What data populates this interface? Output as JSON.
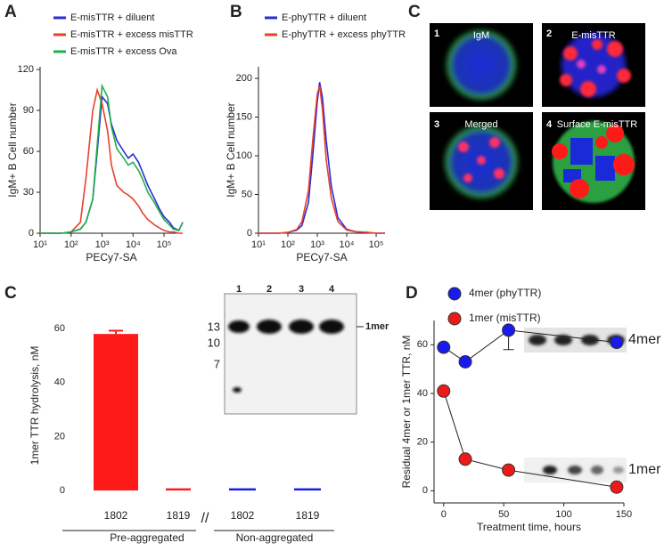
{
  "chart_data": [
    {
      "panel": "A",
      "type": "line",
      "xscale": "log",
      "ylabel": "IgM+ B Cell number",
      "xlabel": "PECy7-SA",
      "legend": "top-left",
      "x": [
        10,
        20,
        50,
        100,
        200,
        300,
        500,
        700,
        1000,
        1500,
        2000,
        3000,
        5000,
        7000,
        10000,
        15000,
        20000,
        30000,
        50000,
        70000,
        100000,
        150000,
        200000,
        300000,
        400000
      ],
      "xlim": [
        10,
        400000
      ],
      "xticks": [
        {
          "value": 10,
          "label": "10¹"
        },
        {
          "value": 100,
          "label": "10²"
        },
        {
          "value": 1000,
          "label": "10³"
        },
        {
          "value": 10000,
          "label": "10⁴"
        },
        {
          "value": 100000,
          "label": "10⁵"
        }
      ],
      "ylim": [
        0,
        122
      ],
      "yticks": [
        0,
        30,
        60,
        90,
        120
      ],
      "series": [
        {
          "name": "E-misTTR + diluent",
          "color": "#2b2bd6",
          "values": [
            0,
            0,
            0,
            1,
            3,
            8,
            25,
            60,
            100,
            95,
            80,
            68,
            60,
            55,
            58,
            52,
            45,
            35,
            25,
            18,
            12,
            8,
            4,
            2,
            8
          ]
        },
        {
          "name": "E-misTTR + excess misTTR",
          "color": "#e8402a",
          "values": [
            0,
            0,
            0,
            1,
            8,
            40,
            90,
            105,
            95,
            75,
            50,
            35,
            30,
            28,
            25,
            20,
            15,
            10,
            6,
            4,
            2,
            1,
            1,
            0,
            0
          ]
        },
        {
          "name": "E-misTTR + excess Ova",
          "color": "#1fb04a",
          "values": [
            0,
            0,
            0,
            1,
            3,
            8,
            25,
            65,
            108,
            100,
            78,
            62,
            55,
            50,
            52,
            46,
            40,
            30,
            22,
            16,
            10,
            6,
            3,
            2,
            8
          ]
        }
      ]
    },
    {
      "panel": "B",
      "type": "line",
      "xscale": "log",
      "ylabel": "IgM+ B Cell number",
      "xlabel": "PECy7-SA",
      "legend": "top-left",
      "x": [
        10,
        20,
        50,
        100,
        200,
        300,
        500,
        700,
        1000,
        1200,
        1500,
        2000,
        3000,
        5000,
        10000,
        20000,
        50000,
        100000,
        200000
      ],
      "xlim": [
        10,
        200000
      ],
      "xticks": [
        {
          "value": 10,
          "label": "10¹"
        },
        {
          "value": 100,
          "label": "10²"
        },
        {
          "value": 1000,
          "label": "10³"
        },
        {
          "value": 10000,
          "label": "10⁴"
        },
        {
          "value": 100000,
          "label": "10⁵"
        }
      ],
      "ylim": [
        0,
        215
      ],
      "yticks": [
        0,
        50,
        100,
        150,
        200
      ],
      "series": [
        {
          "name": "E-phyTTR + diluent",
          "color": "#2b2bd6",
          "values": [
            0,
            0,
            0,
            1,
            4,
            10,
            40,
            100,
            170,
            195,
            175,
            120,
            60,
            20,
            5,
            2,
            1,
            0,
            0
          ]
        },
        {
          "name": "E-phyTTR + excess phyTTR",
          "color": "#e8402a",
          "values": [
            0,
            0,
            0,
            1,
            5,
            15,
            55,
            120,
            180,
            190,
            160,
            95,
            45,
            15,
            4,
            2,
            1,
            0,
            0
          ]
        }
      ]
    },
    {
      "panel": "C",
      "type": "bar",
      "ylabel": "1mer TTR hydrolysis, nM",
      "categories": [
        "1802",
        "1819",
        "1802",
        "1819"
      ],
      "group_labels": [
        "Pre-aggregated",
        "Non-aggregated"
      ],
      "values": [
        58,
        0.8,
        0.8,
        0.8
      ],
      "errors": [
        1.2,
        null,
        null,
        null
      ],
      "colors": [
        "#ff1a1a",
        "#ff1a1a",
        "#1a1aee",
        "#1a1aee"
      ],
      "ylim": [
        0,
        63
      ],
      "yticks": [
        0,
        20,
        40,
        60
      ],
      "inset": {
        "lanes": [
          "1",
          "2",
          "3",
          "4"
        ],
        "markers": [
          13,
          10,
          7
        ],
        "band_label": "1mer"
      }
    },
    {
      "panel": "D",
      "type": "line",
      "markers": true,
      "xlabel": "Treatment time, hours",
      "ylabel": "Residual 4mer or 1mer TTR, nM",
      "x": [
        0,
        18,
        54,
        144
      ],
      "xlim": [
        -8,
        150
      ],
      "xticks": [
        0,
        50,
        100,
        150
      ],
      "ylim": [
        -5,
        70
      ],
      "yticks": [
        0,
        20,
        40,
        60
      ],
      "series": [
        {
          "name": "4mer (phyTTR)",
          "color": "#1a1aee",
          "values": [
            59,
            53,
            66,
            61
          ],
          "errors": [
            null,
            null,
            8,
            null
          ]
        },
        {
          "name": "1mer (misTTR)",
          "color": "#ee1a1a",
          "values": [
            41,
            13,
            8.5,
            1.5
          ],
          "errors": [
            null,
            null,
            null,
            null
          ]
        }
      ],
      "gel_labels": [
        "4mer",
        "1mer"
      ]
    }
  ],
  "images": {
    "panel": "C",
    "items": [
      {
        "number": "1",
        "label": "IgM"
      },
      {
        "number": "2",
        "label": "E-misTTR"
      },
      {
        "number": "3",
        "label": "Merged"
      },
      {
        "number": "4",
        "label": "Surface E-misTTR"
      }
    ]
  }
}
